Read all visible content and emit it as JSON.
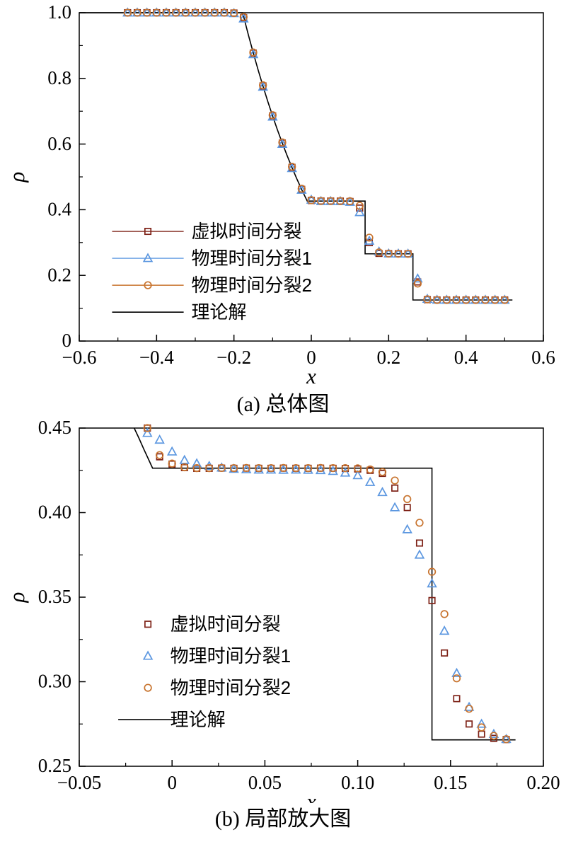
{
  "page": {
    "background": "#ffffff"
  },
  "colors": {
    "squares": "#7e2217",
    "triangles": "#5c97e0",
    "circles": "#c8742f",
    "theory": "#000000"
  },
  "chart_data": [
    {
      "type": "scatter",
      "caption": "(a) 总体图",
      "xlabel": "x",
      "ylabel": "ρ",
      "xlim": [
        -0.6,
        0.6
      ],
      "ylim": [
        0,
        1
      ],
      "xtick_vals": [
        -0.6,
        -0.4,
        -0.2,
        0,
        0.2,
        0.4,
        0.6
      ],
      "xtick_labels": [
        "−0.6",
        "−0.4",
        "−0.2",
        "0",
        "0.2",
        "0.4",
        "0.6"
      ],
      "ytick_vals": [
        0,
        0.2,
        0.4,
        0.6,
        0.8,
        1.0
      ],
      "ytick_labels": [
        "0",
        "0.2",
        "0.4",
        "0.6",
        "0.8",
        "1.0"
      ],
      "minor_ticks": true,
      "legend": {
        "x0": -0.515,
        "line_len": 0.185,
        "text_dx": 0.205,
        "y0": 0.334,
        "dy": 0.082,
        "lines_through_markers": true
      },
      "series": [
        {
          "name": "虚拟时间分裂",
          "marker": "square",
          "color_key": "squares",
          "x": [
            -0.475,
            -0.45,
            -0.425,
            -0.4,
            -0.375,
            -0.35,
            -0.325,
            -0.3,
            -0.275,
            -0.25,
            -0.225,
            -0.2,
            -0.175,
            -0.15,
            -0.125,
            -0.1,
            -0.075,
            -0.05,
            -0.025,
            0,
            0.025,
            0.05,
            0.075,
            0.1,
            0.125,
            0.15,
            0.175,
            0.2,
            0.225,
            0.25,
            0.275,
            0.3,
            0.325,
            0.35,
            0.375,
            0.4,
            0.425,
            0.45,
            0.475,
            0.5
          ],
          "y": [
            1,
            1,
            1,
            1,
            1,
            1,
            1,
            1,
            1,
            1,
            1,
            0.999,
            0.985,
            0.877,
            0.777,
            0.686,
            0.603,
            0.529,
            0.462,
            0.428,
            0.4264,
            0.4263,
            0.4262,
            0.425,
            0.405,
            0.3,
            0.267,
            0.266,
            0.2657,
            0.2656,
            0.18,
            0.126,
            0.125,
            0.125,
            0.125,
            0.125,
            0.125,
            0.125,
            0.125,
            0.125
          ]
        },
        {
          "name": "物理时间分裂1",
          "marker": "triangle",
          "color_key": "triangles",
          "x": [
            -0.475,
            -0.45,
            -0.425,
            -0.4,
            -0.375,
            -0.35,
            -0.325,
            -0.3,
            -0.275,
            -0.25,
            -0.225,
            -0.2,
            -0.175,
            -0.15,
            -0.125,
            -0.1,
            -0.075,
            -0.05,
            -0.025,
            0,
            0.025,
            0.05,
            0.075,
            0.1,
            0.125,
            0.15,
            0.175,
            0.2,
            0.225,
            0.25,
            0.275,
            0.3,
            0.325,
            0.35,
            0.375,
            0.4,
            0.425,
            0.45,
            0.475,
            0.5
          ],
          "y": [
            1,
            1,
            1,
            1,
            1,
            1,
            1,
            1,
            1,
            1,
            1,
            0.998,
            0.982,
            0.873,
            0.774,
            0.683,
            0.6,
            0.526,
            0.46,
            0.43,
            0.4257,
            0.4255,
            0.4254,
            0.4235,
            0.392,
            0.305,
            0.272,
            0.2662,
            0.2658,
            0.2656,
            0.19,
            0.128,
            0.1251,
            0.125,
            0.125,
            0.125,
            0.125,
            0.125,
            0.125,
            0.125
          ]
        },
        {
          "name": "物理时间分裂2",
          "marker": "circle",
          "color_key": "circles",
          "x": [
            -0.475,
            -0.45,
            -0.425,
            -0.4,
            -0.375,
            -0.35,
            -0.325,
            -0.3,
            -0.275,
            -0.25,
            -0.225,
            -0.2,
            -0.175,
            -0.15,
            -0.125,
            -0.1,
            -0.075,
            -0.05,
            -0.025,
            0,
            0.025,
            0.05,
            0.075,
            0.1,
            0.125,
            0.15,
            0.175,
            0.2,
            0.225,
            0.25,
            0.275,
            0.3,
            0.325,
            0.35,
            0.375,
            0.4,
            0.425,
            0.45,
            0.475,
            0.5
          ],
          "y": [
            1,
            1,
            1,
            1,
            1,
            1,
            1,
            1,
            1,
            1,
            1,
            0.999,
            0.987,
            0.879,
            0.779,
            0.688,
            0.605,
            0.531,
            0.464,
            0.429,
            0.4266,
            0.4264,
            0.4263,
            0.4258,
            0.412,
            0.315,
            0.27,
            0.2663,
            0.2658,
            0.2656,
            0.175,
            0.127,
            0.125,
            0.125,
            0.125,
            0.125,
            0.125,
            0.125,
            0.125,
            0.125
          ]
        },
        {
          "name": "理论解",
          "marker": "none",
          "line": true,
          "color_key": "theory",
          "points": [
            [
              -0.6,
              1
            ],
            [
              -0.1775,
              1
            ],
            [
              -0.1625,
              0.9316
            ],
            [
              -0.15,
              0.8775
            ],
            [
              -0.1375,
              0.8259
            ],
            [
              -0.125,
              0.7767
            ],
            [
              -0.1125,
              0.7299
            ],
            [
              -0.1,
              0.6854
            ],
            [
              -0.0875,
              0.6431
            ],
            [
              -0.075,
              0.6029
            ],
            [
              -0.0625,
              0.5648
            ],
            [
              -0.05,
              0.5286
            ],
            [
              -0.0375,
              0.4943
            ],
            [
              -0.025,
              0.4618
            ],
            [
              -0.0105,
              0.4263
            ],
            [
              0.1391,
              0.4263
            ],
            [
              0.1391,
              0.2656
            ],
            [
              0.2628,
              0.2656
            ],
            [
              0.2628,
              0.125
            ],
            [
              0.52,
              0.125
            ]
          ]
        }
      ]
    },
    {
      "type": "scatter",
      "caption": "(b) 局部放大图",
      "xlabel": "x",
      "ylabel": "ρ",
      "xlim": [
        -0.05,
        0.2
      ],
      "ylim": [
        0.25,
        0.45
      ],
      "xtick_vals": [
        -0.05,
        0,
        0.05,
        0.1,
        0.15,
        0.2
      ],
      "xtick_labels": [
        "−0.05",
        "0",
        "0.05",
        "0.10",
        "0.15",
        "0.20"
      ],
      "ytick_vals": [
        0.25,
        0.3,
        0.35,
        0.4,
        0.45
      ],
      "ytick_labels": [
        "0.25",
        "0.30",
        "0.35",
        "0.40",
        "0.45"
      ],
      "minor_ticks": true,
      "legend": {
        "x0": -0.029,
        "line_len": 0.032,
        "text_dx": 0.028,
        "y0": 0.334,
        "dy": 0.0188,
        "lines_through_markers": false
      },
      "series": [
        {
          "name": "虚拟时间分裂",
          "marker": "square",
          "color_key": "squares",
          "x": [
            -0.0133,
            -0.0067,
            0,
            0.0067,
            0.0133,
            0.02,
            0.0267,
            0.0333,
            0.04,
            0.0467,
            0.0533,
            0.06,
            0.0667,
            0.0733,
            0.08,
            0.0867,
            0.0933,
            0.1,
            0.1067,
            0.1133,
            0.12,
            0.1267,
            0.1333,
            0.14,
            0.1467,
            0.1533,
            0.16,
            0.1667,
            0.1733,
            0.18
          ],
          "y": [
            0.45,
            0.433,
            0.4287,
            0.4266,
            0.4262,
            0.4262,
            0.4263,
            0.4262,
            0.4263,
            0.4262,
            0.4262,
            0.4263,
            0.4262,
            0.4262,
            0.4263,
            0.4262,
            0.4261,
            0.4258,
            0.425,
            0.4232,
            0.4145,
            0.403,
            0.382,
            0.348,
            0.317,
            0.29,
            0.275,
            0.269,
            0.2665,
            0.2658
          ]
        },
        {
          "name": "物理时间分裂1",
          "marker": "triangle",
          "color_key": "triangles",
          "x": [
            -0.0133,
            -0.0067,
            0,
            0.0067,
            0.0133,
            0.02,
            0.0267,
            0.0333,
            0.04,
            0.0467,
            0.0533,
            0.06,
            0.0667,
            0.0733,
            0.08,
            0.0867,
            0.0933,
            0.1,
            0.1067,
            0.1133,
            0.12,
            0.1267,
            0.1333,
            0.14,
            0.1467,
            0.1533,
            0.16,
            0.1667,
            0.1733,
            0.18
          ],
          "y": [
            0.447,
            0.443,
            0.436,
            0.431,
            0.429,
            0.4275,
            0.4265,
            0.4258,
            0.4255,
            0.4253,
            0.4253,
            0.4252,
            0.4253,
            0.4252,
            0.425,
            0.4245,
            0.4235,
            0.422,
            0.418,
            0.412,
            0.403,
            0.39,
            0.375,
            0.358,
            0.33,
            0.305,
            0.285,
            0.275,
            0.269,
            0.266
          ]
        },
        {
          "name": "物理时间分裂2",
          "marker": "circle",
          "color_key": "circles",
          "x": [
            -0.0133,
            -0.0067,
            0,
            0.0067,
            0.0133,
            0.02,
            0.0267,
            0.0333,
            0.04,
            0.0467,
            0.0533,
            0.06,
            0.0667,
            0.0733,
            0.08,
            0.0867,
            0.0933,
            0.1,
            0.1067,
            0.1133,
            0.12,
            0.1267,
            0.1333,
            0.14,
            0.1467,
            0.1533,
            0.16,
            0.1667,
            0.1733,
            0.18
          ],
          "y": [
            0.45,
            0.434,
            0.429,
            0.4268,
            0.4263,
            0.4263,
            0.4264,
            0.4263,
            0.4264,
            0.4263,
            0.4263,
            0.4264,
            0.4263,
            0.4263,
            0.4264,
            0.4263,
            0.4263,
            0.4262,
            0.4255,
            0.424,
            0.419,
            0.408,
            0.394,
            0.365,
            0.34,
            0.302,
            0.284,
            0.273,
            0.268,
            0.266
          ]
        },
        {
          "name": "理论解",
          "marker": "none",
          "line": true,
          "color_key": "theory",
          "points": [
            [
              -0.0204,
              0.45
            ],
            [
              -0.018,
              0.4444
            ],
            [
              -0.015,
              0.437
            ],
            [
              -0.0128,
              0.4318
            ],
            [
              -0.0105,
              0.4263
            ],
            [
              0.14,
              0.4263
            ],
            [
              0.14,
              0.2656
            ],
            [
              0.185,
              0.2656
            ]
          ]
        }
      ]
    }
  ]
}
